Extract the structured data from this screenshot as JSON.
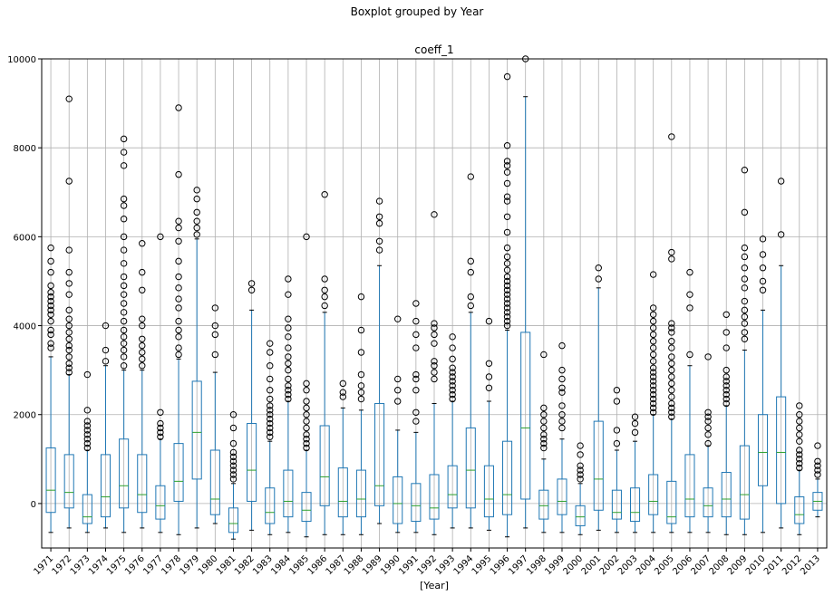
{
  "chart_data": {
    "type": "boxplot",
    "suptitle": "Boxplot grouped by Year",
    "title": "coeff_1",
    "xlabel": "[Year]",
    "ylabel": "",
    "ylim": [
      -1000,
      10000
    ],
    "yticks": [
      0,
      2000,
      4000,
      6000,
      8000,
      10000
    ],
    "ytick_labels": [
      "0",
      "2000",
      "4000",
      "6000",
      "8000",
      "10000"
    ],
    "grid": true,
    "colors": {
      "box": "#1f77b4",
      "median": "#2ca02c",
      "whisker": "#000000",
      "flier": "#000000",
      "grid": "#b0b0b0"
    },
    "categories": [
      "1971",
      "1972",
      "1973",
      "1974",
      "1975",
      "1976",
      "1977",
      "1978",
      "1979",
      "1980",
      "1981",
      "1982",
      "1983",
      "1984",
      "1985",
      "1986",
      "1987",
      "1988",
      "1989",
      "1990",
      "1991",
      "1992",
      "1993",
      "1994",
      "1995",
      "1996",
      "1997",
      "1998",
      "1999",
      "2000",
      "2001",
      "2002",
      "2003",
      "2004",
      "2005",
      "2006",
      "2007",
      "2008",
      "2009",
      "2010",
      "2011",
      "2012",
      "2013"
    ],
    "boxes": [
      {
        "q1": -200,
        "median": 300,
        "q3": 1250,
        "wlo": -650,
        "whi": 3300,
        "fliers": [
          3500,
          3600,
          3800,
          3900,
          4100,
          4250,
          4350,
          4450,
          4550,
          4650,
          4750,
          4900,
          5200,
          5450,
          5750
        ]
      },
      {
        "q1": -100,
        "median": 250,
        "q3": 1100,
        "wlo": -550,
        "whi": 2900,
        "fliers": [
          2950,
          3050,
          3150,
          3300,
          3450,
          3550,
          3700,
          3850,
          4000,
          4150,
          4350,
          4700,
          4950,
          5200,
          5700,
          7250,
          9100
        ]
      },
      {
        "q1": -450,
        "median": -300,
        "q3": 200,
        "wlo": -650,
        "whi": 1200,
        "fliers": [
          1250,
          1350,
          1450,
          1550,
          1650,
          1750,
          1850,
          2100,
          2900
        ]
      },
      {
        "q1": -300,
        "median": 150,
        "q3": 1100,
        "wlo": -550,
        "whi": 3100,
        "fliers": [
          3200,
          3450,
          4000
        ]
      },
      {
        "q1": -100,
        "median": 400,
        "q3": 1450,
        "wlo": -650,
        "whi": 3000,
        "fliers": [
          3100,
          3300,
          3450,
          3600,
          3750,
          3900,
          4100,
          4300,
          4500,
          4700,
          4900,
          5100,
          5400,
          5700,
          6000,
          6400,
          6700,
          6850,
          7600,
          7900,
          8200
        ]
      },
      {
        "q1": -200,
        "median": 200,
        "q3": 1100,
        "wlo": -550,
        "whi": 3000,
        "fliers": [
          3100,
          3250,
          3400,
          3550,
          3700,
          4000,
          4150,
          4800,
          5200,
          5850
        ]
      },
      {
        "q1": -350,
        "median": -50,
        "q3": 400,
        "wlo": -650,
        "whi": 1450,
        "fliers": [
          1500,
          1600,
          1700,
          1800,
          2050,
          6000
        ]
      },
      {
        "q1": 50,
        "median": 500,
        "q3": 1350,
        "wlo": -700,
        "whi": 3250,
        "fliers": [
          3350,
          3500,
          3750,
          3900,
          4100,
          4400,
          4600,
          4850,
          5100,
          5450,
          5900,
          6200,
          6350,
          7400,
          8900
        ]
      },
      {
        "q1": 550,
        "median": 1600,
        "q3": 2750,
        "wlo": -550,
        "whi": 5950,
        "fliers": [
          6050,
          6200,
          6350,
          6550,
          6850,
          7050
        ]
      },
      {
        "q1": -250,
        "median": 100,
        "q3": 1200,
        "wlo": -450,
        "whi": 2950,
        "fliers": [
          3350,
          3800,
          4000,
          4400
        ]
      },
      {
        "q1": -650,
        "median": -450,
        "q3": -100,
        "wlo": -800,
        "whi": 450,
        "fliers": [
          550,
          650,
          750,
          850,
          950,
          1050,
          1150,
          1350,
          1700,
          2000
        ]
      },
      {
        "q1": 50,
        "median": 750,
        "q3": 1800,
        "wlo": -600,
        "whi": 4350,
        "fliers": [
          4800,
          4950
        ]
      },
      {
        "q1": -450,
        "median": -200,
        "q3": 350,
        "wlo": -700,
        "whi": 1400,
        "fliers": [
          1500,
          1600,
          1700,
          1800,
          1900,
          2000,
          2100,
          2200,
          2350,
          2550,
          2800,
          3100,
          3400,
          3600
        ]
      },
      {
        "q1": -300,
        "median": 50,
        "q3": 750,
        "wlo": -650,
        "whi": 2300,
        "fliers": [
          2350,
          2450,
          2550,
          2650,
          2800,
          3000,
          3150,
          3300,
          3500,
          3750,
          3950,
          4150,
          4700,
          5050
        ]
      },
      {
        "q1": -400,
        "median": -150,
        "q3": 250,
        "wlo": -750,
        "whi": 1200,
        "fliers": [
          1250,
          1350,
          1450,
          1550,
          1700,
          1850,
          2000,
          2150,
          2300,
          2550,
          2700,
          6000
        ]
      },
      {
        "q1": -50,
        "median": 600,
        "q3": 1750,
        "wlo": -700,
        "whi": 4300,
        "fliers": [
          4450,
          4650,
          4800,
          5050,
          6950
        ]
      },
      {
        "q1": -300,
        "median": 50,
        "q3": 800,
        "wlo": -700,
        "whi": 2150,
        "fliers": [
          2400,
          2500,
          2700
        ]
      },
      {
        "q1": -300,
        "median": 100,
        "q3": 750,
        "wlo": -700,
        "whi": 2100,
        "fliers": [
          2350,
          2500,
          2650,
          2900,
          3400,
          3900,
          4650
        ]
      },
      {
        "q1": -50,
        "median": 400,
        "q3": 2250,
        "wlo": -450,
        "whi": 5350,
        "fliers": [
          5700,
          5900,
          6300,
          6450,
          6800
        ]
      },
      {
        "q1": -450,
        "median": 0,
        "q3": 600,
        "wlo": -650,
        "whi": 1650,
        "fliers": [
          2300,
          2550,
          2800,
          4150
        ]
      },
      {
        "q1": -400,
        "median": -50,
        "q3": 450,
        "wlo": -650,
        "whi": 1600,
        "fliers": [
          1850,
          2050,
          2550,
          2800,
          2900,
          3500,
          3800,
          4100,
          4500
        ]
      },
      {
        "q1": -350,
        "median": -100,
        "q3": 650,
        "wlo": -700,
        "whi": 2250,
        "fliers": [
          2800,
          2950,
          3100,
          3200,
          3600,
          3800,
          3950,
          4050,
          6500
        ]
      },
      {
        "q1": -100,
        "median": 200,
        "q3": 850,
        "wlo": -550,
        "whi": 2300,
        "fliers": [
          2350,
          2450,
          2550,
          2650,
          2750,
          2850,
          2950,
          3050,
          3250,
          3500,
          3750
        ]
      },
      {
        "q1": -100,
        "median": 750,
        "q3": 1700,
        "wlo": -550,
        "whi": 4300,
        "fliers": [
          4450,
          4650,
          5200,
          5450,
          7350
        ]
      },
      {
        "q1": -300,
        "median": 100,
        "q3": 850,
        "wlo": -600,
        "whi": 2300,
        "fliers": [
          2600,
          2850,
          3150,
          4100
        ]
      },
      {
        "q1": -250,
        "median": 200,
        "q3": 1400,
        "wlo": -750,
        "whi": 3900,
        "fliers": [
          4000,
          4100,
          4200,
          4300,
          4400,
          4500,
          4600,
          4700,
          4800,
          4900,
          5000,
          5100,
          5250,
          5400,
          5550,
          5750,
          6100,
          6450,
          6800,
          6900,
          7200,
          7450,
          7600,
          7700,
          8050,
          9600
        ]
      },
      {
        "q1": 100,
        "median": 1700,
        "q3": 3850,
        "wlo": -550,
        "whi": 9150,
        "fliers": [
          10000
        ]
      },
      {
        "q1": -350,
        "median": -50,
        "q3": 300,
        "wlo": -650,
        "whi": 1000,
        "fliers": [
          1250,
          1350,
          1450,
          1550,
          1700,
          1850,
          2000,
          2150,
          3350
        ]
      },
      {
        "q1": -250,
        "median": 50,
        "q3": 550,
        "wlo": -650,
        "whi": 1450,
        "fliers": [
          1700,
          1850,
          2000,
          2200,
          2500,
          2600,
          2800,
          3000,
          3550
        ]
      },
      {
        "q1": -500,
        "median": -300,
        "q3": -50,
        "wlo": -700,
        "whi": 450,
        "fliers": [
          550,
          650,
          750,
          850,
          1100,
          1300
        ]
      },
      {
        "q1": -150,
        "median": 550,
        "q3": 1850,
        "wlo": -600,
        "whi": 4850,
        "fliers": [
          5050,
          5300
        ]
      },
      {
        "q1": -350,
        "median": -200,
        "q3": 300,
        "wlo": -650,
        "whi": 1200,
        "fliers": [
          1350,
          1650,
          2300,
          2550
        ]
      },
      {
        "q1": -400,
        "median": -200,
        "q3": 350,
        "wlo": -650,
        "whi": 1400,
        "fliers": [
          1600,
          1800,
          1950
        ]
      },
      {
        "q1": -250,
        "median": 50,
        "q3": 650,
        "wlo": -650,
        "whi": 2000,
        "fliers": [
          2050,
          2150,
          2250,
          2350,
          2450,
          2550,
          2650,
          2750,
          2850,
          2950,
          3050,
          3200,
          3350,
          3500,
          3650,
          3800,
          3950,
          4100,
          4250,
          4400,
          5150
        ]
      },
      {
        "q1": -450,
        "median": -300,
        "q3": 500,
        "wlo": -650,
        "whi": 1900,
        "fliers": [
          1950,
          2050,
          2150,
          2250,
          2400,
          2550,
          2700,
          2850,
          3000,
          3150,
          3300,
          3500,
          3650,
          3850,
          3950,
          4050,
          5500,
          5650,
          8250
        ]
      },
      {
        "q1": -300,
        "median": 100,
        "q3": 1100,
        "wlo": -650,
        "whi": 3100,
        "fliers": [
          3350,
          4400,
          4700,
          5200
        ]
      },
      {
        "q1": -300,
        "median": -50,
        "q3": 350,
        "wlo": -650,
        "whi": 1300,
        "fliers": [
          1350,
          1550,
          1700,
          1850,
          1950,
          2050,
          3300
        ]
      },
      {
        "q1": -300,
        "median": 100,
        "q3": 700,
        "wlo": -700,
        "whi": 2200,
        "fliers": [
          2250,
          2350,
          2450,
          2550,
          2650,
          2750,
          2850,
          3000,
          3500,
          3850,
          4250
        ]
      },
      {
        "q1": -350,
        "median": 200,
        "q3": 1300,
        "wlo": -700,
        "whi": 3450,
        "fliers": [
          3700,
          3850,
          4050,
          4200,
          4350,
          4550,
          4850,
          5050,
          5300,
          5550,
          5750,
          6550,
          7500
        ]
      },
      {
        "q1": 400,
        "median": 1150,
        "q3": 2000,
        "wlo": -650,
        "whi": 4350,
        "fliers": [
          4800,
          5000,
          5300,
          5600,
          5950
        ]
      },
      {
        "q1": 0,
        "median": 1150,
        "q3": 2400,
        "wlo": -550,
        "whi": 5350,
        "fliers": [
          6050,
          7250
        ]
      },
      {
        "q1": -450,
        "median": -250,
        "q3": 150,
        "wlo": -700,
        "whi": 750,
        "fliers": [
          800,
          900,
          1000,
          1100,
          1200,
          1400,
          1550,
          1700,
          1850,
          2000,
          2200
        ]
      },
      {
        "q1": -150,
        "median": 50,
        "q3": 250,
        "wlo": -300,
        "whi": 550,
        "fliers": [
          650,
          750,
          850,
          950,
          1300
        ]
      }
    ]
  }
}
